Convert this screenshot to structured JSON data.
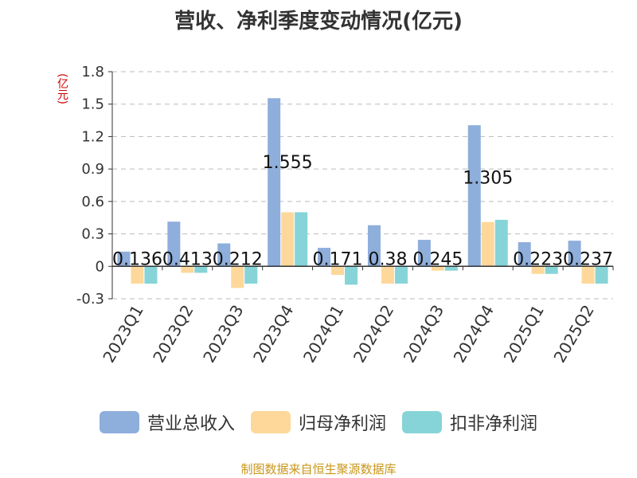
{
  "chart_data": {
    "type": "bar",
    "title": "营收、净利季度变动情况(亿元)",
    "unit_label": "(亿元)",
    "categories": [
      "2023Q1",
      "2023Q2",
      "2023Q3",
      "2023Q4",
      "2024Q1",
      "2024Q2",
      "2024Q3",
      "2024Q4",
      "2025Q1",
      "2025Q2"
    ],
    "series": [
      {
        "name": "营业总收入",
        "color": "#8eaedb",
        "values": [
          0.136,
          0.413,
          0.212,
          1.555,
          0.171,
          0.38,
          0.245,
          1.305,
          0.223,
          0.237
        ]
      },
      {
        "name": "归母净利润",
        "color": "#fdd89a",
        "values": [
          -0.16,
          -0.06,
          -0.2,
          0.5,
          -0.08,
          -0.16,
          -0.04,
          0.41,
          -0.07,
          -0.16
        ]
      },
      {
        "name": "扣非净利润",
        "color": "#86d4d7",
        "values": [
          -0.16,
          -0.06,
          -0.16,
          0.5,
          -0.17,
          -0.16,
          -0.04,
          0.43,
          -0.07,
          -0.16
        ]
      }
    ],
    "data_labels": [
      "0.136",
      "0.413",
      "0.212",
      "1.555",
      "0.171",
      "0.38",
      "0.245",
      "1.305",
      "0.223",
      "0.237"
    ],
    "yticks": [
      "1.8",
      "1.5",
      "1.2",
      "0.9",
      "0.6",
      "0.3",
      "0",
      "-0.3"
    ],
    "ylim": [
      -0.3,
      1.8
    ],
    "grid": true,
    "legend_position": "bottom"
  },
  "footer": {
    "source": "制图数据来自恒生聚源数据库"
  }
}
